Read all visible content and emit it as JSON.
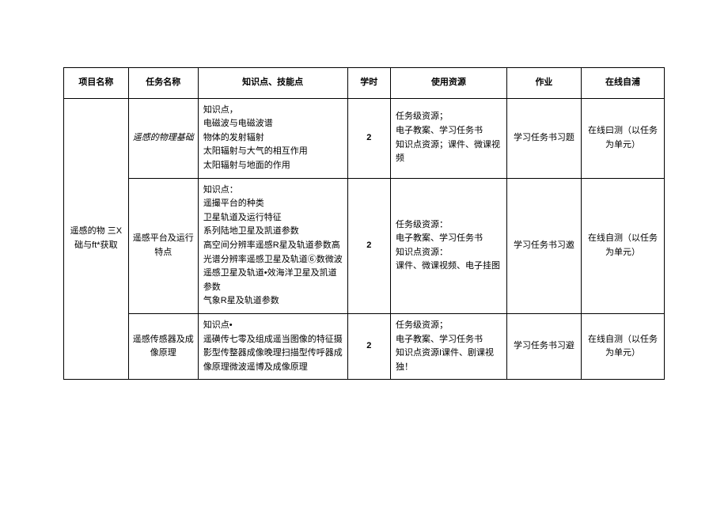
{
  "headers": {
    "project": "项目名称",
    "task": "任务名称",
    "knowledge": "知识点、技能点",
    "hours": "学时",
    "resource": "使用资源",
    "homework": "作业",
    "online": "在线自浦"
  },
  "project_name": "遥感的物 三X 础与ft*获取",
  "rows": [
    {
      "task": "遥感的物理基础",
      "task_italic": true,
      "knowledge": "知识点，\n电磁波与电磁波谱\n物体的发射辐射\n太阳辐射与大气的相互作用\n太阳辐射与地面的作用",
      "hours": "2",
      "resource": "任务级资源；\n电子教案、学习任务书\n知识点资源；课件、微课视频",
      "homework": "学习任务书习题",
      "online": "在线曰测（以任务为单元）"
    },
    {
      "task": "遥感平台及运行特点",
      "task_italic": false,
      "knowledge": "知识点：\n遥撮平台的种类\n卫星轨道及运行特征\n系列陆地卫星及凯道参数\n高空间分辨率遥感R星及轨道参数高光谱分辨率遥感卫星及轨道⑥数微波遥感卫星及轨道•效海洋卫星及凯道参数\n气象R星及轨道参数",
      "hours": "2",
      "resource": "任务级资源：\n电子教案、学习任务书\n知识点资源：\n课件、微课视频、电子挂图",
      "homework": "学习任务书习邀",
      "online": "在线自测（以任务为单元）"
    },
    {
      "task": "遥感传感器及成像原理",
      "task_italic": false,
      "knowledge": "知识点•\n遥磺传七零及组成遥当图像的特征摄影型传整器成像晚理扫描型传呼器成像原理微波遥博及成像原理",
      "hours": "2",
      "resource": "任务级资源；\n电子教案、学习任务书\n知识点资源I课件、剧课视独！",
      "homework": "学习任务书习避",
      "online": "在线自测（以任务为单元）"
    }
  ]
}
